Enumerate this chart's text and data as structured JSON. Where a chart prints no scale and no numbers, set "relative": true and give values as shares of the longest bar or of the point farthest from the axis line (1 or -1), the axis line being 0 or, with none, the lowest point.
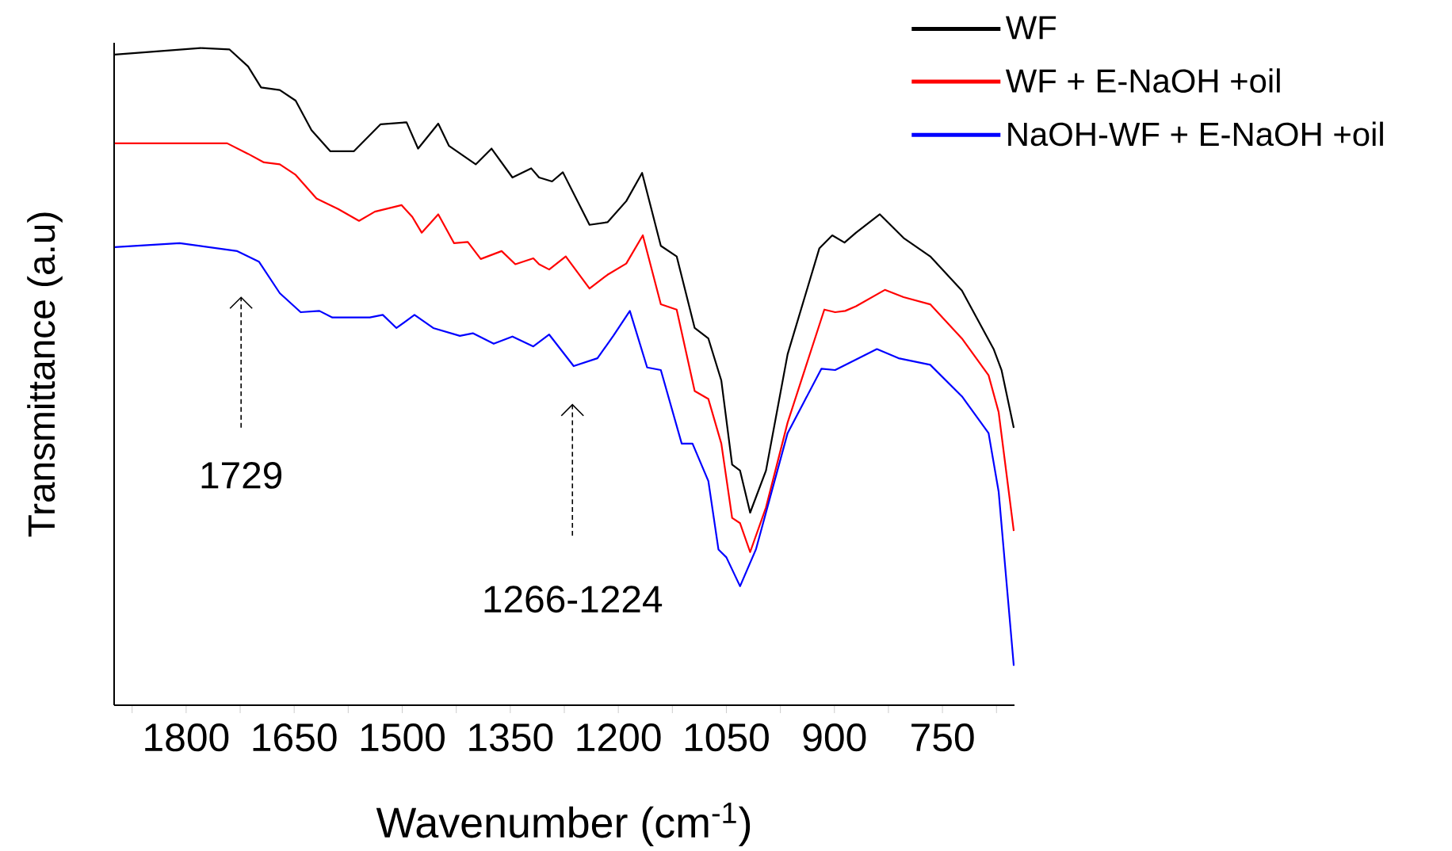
{
  "chart_data": {
    "type": "line",
    "relative": true,
    "xlabel": "Wavenumber (cm$^{-1}$)",
    "ylabel": "Transmittance (a.u)",
    "xlim": [
      1900,
      650
    ],
    "xticks": [
      {
        "value": 1875,
        "label": null
      },
      1800,
      {
        "value": 1725,
        "label": null
      },
      1650,
      {
        "value": 1575,
        "label": null
      },
      1500,
      {
        "value": 1425,
        "label": null
      },
      1350,
      {
        "value": 1275,
        "label": null
      },
      1200,
      {
        "value": 1125,
        "label": null
      },
      1050,
      {
        "value": 975,
        "label": null
      },
      900,
      {
        "value": 825,
        "label": null
      },
      750,
      {
        "value": 675,
        "label": null
      }
    ],
    "legend": "top right",
    "grid": false,
    "marker": "none",
    "line_style": "solid",
    "annotations": [
      "1729",
      "1266-1224"
    ],
    "series": [
      {
        "name": "WF",
        "color": "#000000",
        "x": [
          1899,
          1780,
          1740,
          1714,
          1696,
          1670,
          1648,
          1626,
          1600,
          1567,
          1530,
          1494,
          1478,
          1450,
          1435,
          1398,
          1376,
          1347,
          1321,
          1310,
          1292,
          1277,
          1240,
          1215,
          1189,
          1167,
          1141,
          1119,
          1094,
          1075,
          1057,
          1042,
          1031,
          1017,
          995,
          965,
          921,
          903,
          886,
          870,
          837,
          804,
          767,
          723,
          679,
          668,
          651
        ],
        "values": [
          0.99,
          1.0,
          0.998,
          0.972,
          0.94,
          0.936,
          0.92,
          0.875,
          0.843,
          0.843,
          0.884,
          0.887,
          0.847,
          0.885,
          0.851,
          0.823,
          0.847,
          0.803,
          0.817,
          0.803,
          0.797,
          0.811,
          0.731,
          0.735,
          0.767,
          0.81,
          0.699,
          0.683,
          0.574,
          0.558,
          0.494,
          0.366,
          0.357,
          0.293,
          0.357,
          0.534,
          0.695,
          0.715,
          0.704,
          0.719,
          0.747,
          0.711,
          0.683,
          0.631,
          0.542,
          0.51,
          0.422
        ]
      },
      {
        "name": "WF + E-NaOH +oil",
        "color": "#ff0000",
        "x": [
          1899,
          1743,
          1714,
          1692,
          1670,
          1648,
          1619,
          1589,
          1560,
          1538,
          1501,
          1486,
          1473,
          1450,
          1428,
          1409,
          1391,
          1362,
          1343,
          1318,
          1310,
          1296,
          1273,
          1240,
          1215,
          1189,
          1166,
          1141,
          1119,
          1094,
          1075,
          1057,
          1042,
          1031,
          1017,
          995,
          965,
          914,
          899,
          885,
          870,
          830,
          804,
          767,
          723,
          686,
          672,
          651
        ],
        "values": [
          0.855,
          0.855,
          0.839,
          0.826,
          0.823,
          0.807,
          0.771,
          0.755,
          0.737,
          0.751,
          0.761,
          0.743,
          0.719,
          0.747,
          0.703,
          0.705,
          0.679,
          0.691,
          0.671,
          0.68,
          0.671,
          0.663,
          0.683,
          0.634,
          0.655,
          0.672,
          0.715,
          0.61,
          0.602,
          0.478,
          0.466,
          0.398,
          0.285,
          0.277,
          0.233,
          0.301,
          0.43,
          0.602,
          0.598,
          0.6,
          0.607,
          0.632,
          0.621,
          0.61,
          0.558,
          0.502,
          0.446,
          0.265
        ]
      },
      {
        "name": "NaOH-WF + E-NaOH +oil",
        "color": "#0000ff",
        "x": [
          1899,
          1809,
          1729,
          1699,
          1670,
          1641,
          1615,
          1597,
          1545,
          1527,
          1508,
          1483,
          1457,
          1420,
          1402,
          1373,
          1347,
          1318,
          1296,
          1262,
          1229,
          1207,
          1184,
          1160,
          1141,
          1112,
          1097,
          1075,
          1061,
          1050,
          1031,
          1009,
          965,
          918,
          899,
          870,
          841,
          811,
          767,
          723,
          686,
          672,
          651
        ],
        "values": [
          0.697,
          0.703,
          0.691,
          0.675,
          0.627,
          0.598,
          0.6,
          0.59,
          0.59,
          0.594,
          0.574,
          0.594,
          0.574,
          0.562,
          0.566,
          0.55,
          0.561,
          0.546,
          0.564,
          0.516,
          0.528,
          0.562,
          0.6,
          0.514,
          0.51,
          0.398,
          0.398,
          0.341,
          0.237,
          0.225,
          0.181,
          0.237,
          0.414,
          0.512,
          0.51,
          0.526,
          0.542,
          0.528,
          0.518,
          0.47,
          0.414,
          0.325,
          0.06
        ]
      }
    ]
  }
}
